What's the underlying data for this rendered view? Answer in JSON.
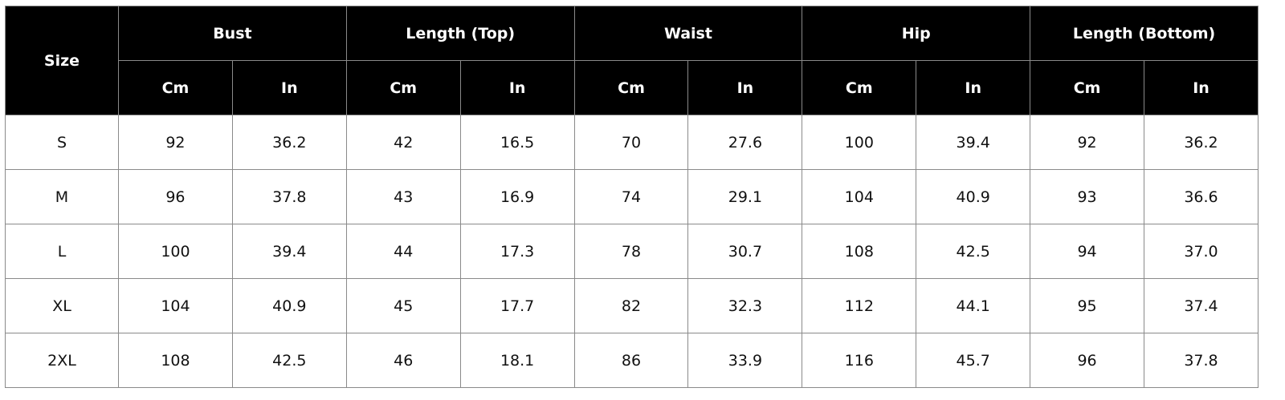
{
  "table": {
    "size_header": "Size",
    "groups": [
      {
        "label": "Bust",
        "columns": [
          "Cm",
          "In"
        ]
      },
      {
        "label": "Length (Top)",
        "columns": [
          "Cm",
          "In"
        ]
      },
      {
        "label": "Waist",
        "columns": [
          "Cm",
          "In"
        ]
      },
      {
        "label": "Hip",
        "columns": [
          "Cm",
          "In"
        ]
      },
      {
        "label": "Length (Bottom)",
        "columns": [
          "Cm",
          "In"
        ]
      }
    ],
    "rows": [
      [
        "S",
        "92",
        "36.2",
        "42",
        "16.5",
        "70",
        "27.6",
        "100",
        "39.4",
        "92",
        "36.2"
      ],
      [
        "M",
        "96",
        "37.8",
        "43",
        "16.9",
        "74",
        "29.1",
        "104",
        "40.9",
        "93",
        "36.6"
      ],
      [
        "L",
        "100",
        "39.4",
        "44",
        "17.3",
        "78",
        "30.7",
        "108",
        "42.5",
        "94",
        "37.0"
      ],
      [
        "XL",
        "104",
        "40.9",
        "45",
        "17.7",
        "82",
        "32.3",
        "112",
        "44.1",
        "95",
        "37.4"
      ],
      [
        "2XL",
        "108",
        "42.5",
        "46",
        "18.1",
        "86",
        "33.9",
        "116",
        "45.7",
        "96",
        "37.8"
      ]
    ]
  }
}
